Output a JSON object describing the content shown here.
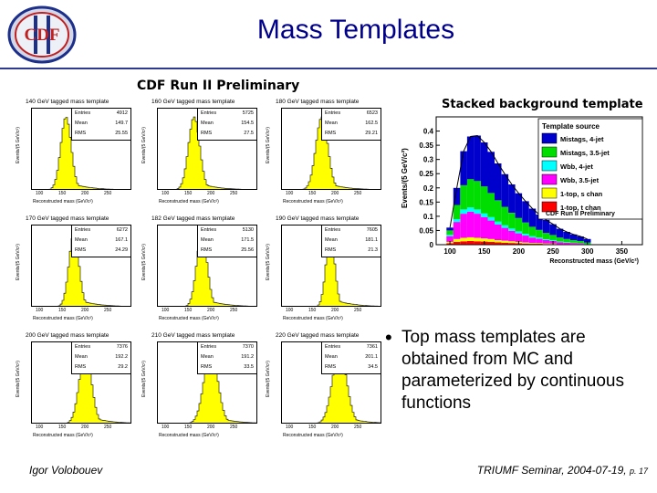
{
  "logo_text": "CDF",
  "slide_title": "Mass Templates",
  "preliminary_label": "CDF Run II Preliminary",
  "panels": [
    {
      "title": "140 GeV tagged mass template",
      "entries": "4912",
      "mean": "149.7",
      "rms": "25.55"
    },
    {
      "title": "160 GeV tagged mass template",
      "entries": "5725",
      "mean": "154.5",
      "rms": "27.5"
    },
    {
      "title": "180 GeV tagged mass template",
      "entries": "6523",
      "mean": "162.5",
      "rms": "29.21"
    },
    {
      "title": "170 GeV tagged mass template",
      "entries": "6272",
      "mean": "167.1",
      "rms": "24.29"
    },
    {
      "title": "182 GeV tagged mass template",
      "entries": "5130",
      "mean": "171.5",
      "rms": "25.56"
    },
    {
      "title": "190 GeV tagged mass template",
      "entries": "7605",
      "mean": "181.1",
      "rms": "21.3"
    },
    {
      "title": "200 GeV tagged mass template",
      "entries": "7376",
      "mean": "192.2",
      "rms": "29.2"
    },
    {
      "title": "210 GeV tagged mass template",
      "entries": "7370",
      "mean": "191.2",
      "rms": "33.5"
    },
    {
      "title": "220 GeV tagged mass template",
      "entries": "7361",
      "mean": "201.1",
      "rms": "34.5"
    }
  ],
  "stat_labels": {
    "entries": "Entries",
    "mean": "Mean",
    "rms": "RMS"
  },
  "panel_axis": {
    "xlabel": "Reconstructed mass (GeV/c²)",
    "ylabel": "Events/(5 GeV/c²)",
    "xticks": [
      "100",
      "150",
      "200",
      "250"
    ]
  },
  "chart_data": {
    "type": "area",
    "title": "Stacked background template",
    "xlabel": "Reconstructed mass (GeV/c²)",
    "ylabel": "Events/(5 GeV/c²)",
    "xlim": [
      80,
      380
    ],
    "ylim": [
      0,
      0.45
    ],
    "xticks": [
      100,
      150,
      200,
      250,
      300,
      350
    ],
    "yticks": [
      0,
      0.05,
      0.1,
      0.15,
      0.2,
      0.25,
      0.3,
      0.35,
      0.4
    ],
    "legend_title": "Template source",
    "legend_position": "top-right",
    "footnote": "CDF Run II Preliminary",
    "x": [
      100,
      110,
      120,
      130,
      140,
      150,
      160,
      170,
      180,
      190,
      200,
      210,
      220,
      230,
      240,
      250,
      260,
      270,
      280,
      290,
      300
    ],
    "series": [
      {
        "name": "1-top, t chan",
        "color": "#ff0000",
        "values": [
          0.005,
          0.01,
          0.012,
          0.013,
          0.012,
          0.011,
          0.01,
          0.008,
          0.007,
          0.006,
          0.005,
          0.004,
          0.003,
          0.003,
          0.002,
          0.002,
          0.001,
          0.001,
          0.001,
          0.001,
          0.0
        ]
      },
      {
        "name": "1-top, s chan",
        "color": "#ffff00",
        "values": [
          0.005,
          0.01,
          0.012,
          0.013,
          0.012,
          0.011,
          0.01,
          0.008,
          0.007,
          0.006,
          0.005,
          0.004,
          0.003,
          0.003,
          0.002,
          0.002,
          0.001,
          0.001,
          0.001,
          0.001,
          0.0
        ]
      },
      {
        "name": "Wbb, 3.5-jet",
        "color": "#ff00ff",
        "values": [
          0.02,
          0.06,
          0.085,
          0.09,
          0.085,
          0.075,
          0.065,
          0.055,
          0.045,
          0.037,
          0.03,
          0.024,
          0.019,
          0.015,
          0.012,
          0.009,
          0.007,
          0.005,
          0.004,
          0.003,
          0.002
        ]
      },
      {
        "name": "Wbb, 4-jet",
        "color": "#00ffff",
        "values": [
          0.005,
          0.01,
          0.015,
          0.015,
          0.015,
          0.013,
          0.012,
          0.01,
          0.009,
          0.008,
          0.007,
          0.006,
          0.005,
          0.004,
          0.003,
          0.003,
          0.002,
          0.002,
          0.001,
          0.001,
          0.001
        ]
      },
      {
        "name": "Mistags, 3.5-jet",
        "color": "#00dd00",
        "values": [
          0.015,
          0.05,
          0.085,
          0.1,
          0.1,
          0.095,
          0.085,
          0.075,
          0.065,
          0.055,
          0.047,
          0.04,
          0.033,
          0.027,
          0.022,
          0.018,
          0.014,
          0.011,
          0.009,
          0.007,
          0.005
        ]
      },
      {
        "name": "Mistags, 4-jet",
        "color": "#0000cc",
        "values": [
          0.01,
          0.06,
          0.12,
          0.15,
          0.16,
          0.155,
          0.145,
          0.13,
          0.115,
          0.1,
          0.087,
          0.075,
          0.064,
          0.054,
          0.046,
          0.038,
          0.031,
          0.025,
          0.02,
          0.016,
          0.012
        ]
      }
    ]
  },
  "bullet_text": "Top mass templates are obtained from MC and parameterized by continuous functions",
  "author": "Igor Volobouev",
  "footer_text": "TRIUMF Seminar, 2004-07-19,",
  "footer_page": "p. 17"
}
